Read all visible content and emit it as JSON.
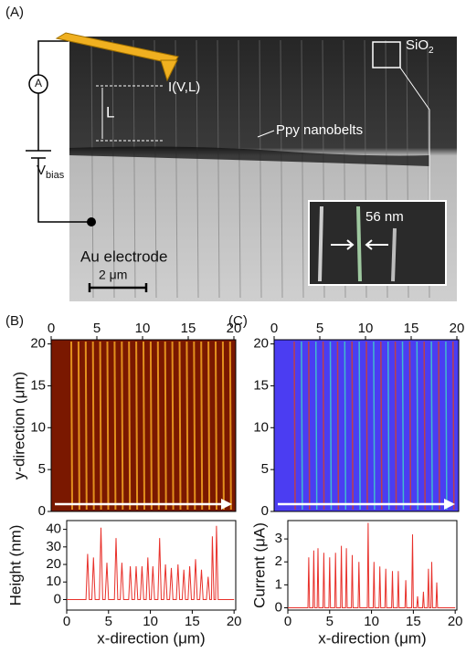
{
  "panel_a": {
    "label": "(A)",
    "ammeter": "A",
    "probe_label": "I(V,L)",
    "length_label": "L",
    "nanobelts_label": "Ppy nanobelts",
    "oxide_label": {
      "text": "SiO",
      "sub": "2"
    },
    "width_label": "56 nm",
    "electrode_label": "Au electrode",
    "scale_label": "2 μm",
    "bias_label": {
      "text": "V",
      "sub": "bias"
    }
  },
  "chart_data": [
    {
      "type": "image",
      "label": "(B)",
      "ylabel": "y-direction (μm)",
      "palette": "heat",
      "xlim": [
        0,
        20.2
      ],
      "xticks": [
        0,
        5,
        10,
        15,
        20
      ],
      "ylim": [
        0,
        20.5
      ],
      "yticks": [
        0,
        5,
        10,
        15,
        20
      ]
    },
    {
      "type": "line",
      "ylabel": "Height (nm)",
      "xlabel": "x-direction (μm)",
      "color": "#e8302a",
      "xlim": [
        0,
        20.2
      ],
      "xticks": [
        0,
        5,
        10,
        15,
        20
      ],
      "ylim": [
        -6,
        45
      ],
      "yticks": [
        0,
        10,
        20,
        30,
        40
      ],
      "x": [
        0,
        2.3,
        2.5,
        2.7,
        3.0,
        3.2,
        3.4,
        3.9,
        4.1,
        4.3,
        4.6,
        4.8,
        5.0,
        5.7,
        5.9,
        6.1,
        6.4,
        6.6,
        6.8,
        7.4,
        7.6,
        7.8,
        8.1,
        8.3,
        8.5,
        8.8,
        9.0,
        9.2,
        9.5,
        9.7,
        9.9,
        10.1,
        10.3,
        10.5,
        10.9,
        11.1,
        11.3,
        11.6,
        11.8,
        12.0,
        12.3,
        12.5,
        12.7,
        13.1,
        13.3,
        13.5,
        13.8,
        14.0,
        14.2,
        14.5,
        14.7,
        14.9,
        15.2,
        15.4,
        15.6,
        15.9,
        16.1,
        16.3,
        16.7,
        16.9,
        17.1,
        17.3,
        17.4,
        17.6,
        17.8,
        17.9,
        18.1,
        20
      ],
      "values": [
        0,
        0,
        26,
        0,
        0,
        24,
        0,
        0,
        41,
        0,
        0,
        21,
        0,
        0,
        35,
        0,
        0,
        21,
        0,
        0,
        19,
        0,
        0,
        19,
        0,
        0,
        19,
        0,
        0,
        24,
        0,
        0,
        19,
        0,
        0,
        35,
        0,
        0,
        20,
        0,
        0,
        18,
        0,
        0,
        20,
        0,
        0,
        17,
        0,
        0,
        19,
        0,
        0,
        23,
        0,
        0,
        17,
        0,
        0,
        13,
        0,
        0,
        36,
        0,
        0,
        42,
        0,
        0
      ]
    },
    {
      "type": "image",
      "label": "(C)",
      "palette": "current",
      "xlim": [
        0,
        20.2
      ],
      "xticks": [
        0,
        5,
        10,
        15,
        20
      ],
      "ylim": [
        0,
        20.5
      ],
      "yticks": [
        0,
        5,
        10,
        15,
        20
      ]
    },
    {
      "type": "line",
      "ylabel": "Current (μA)",
      "xlabel": "x-direction (μm)",
      "color": "#e8302a",
      "xlim": [
        0,
        20.2
      ],
      "xticks": [
        0,
        5,
        10,
        15,
        20
      ],
      "ylim": [
        -0.1,
        3.8
      ],
      "yticks": [
        0,
        1,
        2,
        3
      ],
      "x": [
        0,
        2.4,
        2.5,
        2.6,
        3.0,
        3.1,
        3.2,
        3.5,
        3.6,
        3.7,
        4.2,
        4.3,
        4.4,
        4.9,
        5.0,
        5.1,
        5.6,
        5.7,
        5.8,
        6.3,
        6.4,
        6.5,
        6.9,
        7.0,
        7.1,
        7.6,
        7.7,
        7.8,
        8.4,
        8.5,
        8.6,
        9.5,
        9.6,
        9.7,
        10.2,
        10.3,
        10.4,
        10.9,
        11.0,
        11.1,
        11.6,
        11.7,
        11.8,
        12.4,
        12.5,
        12.6,
        13.1,
        13.2,
        13.3,
        14.0,
        14.1,
        14.2,
        14.8,
        14.9,
        15.0,
        15.4,
        15.5,
        15.6,
        16.1,
        16.2,
        16.3,
        16.7,
        16.8,
        16.9,
        17.1,
        17.2,
        17.3,
        17.7,
        17.8,
        17.9,
        20
      ],
      "values": [
        0,
        0,
        2.2,
        0,
        0,
        2.5,
        0,
        0,
        2.6,
        0,
        0,
        2.4,
        0,
        0,
        2.2,
        0,
        0,
        2.4,
        0,
        0,
        2.7,
        0,
        0,
        2.6,
        0,
        0,
        2.3,
        0,
        0,
        2.0,
        0,
        0,
        3.7,
        0,
        0,
        2.0,
        0,
        0,
        1.8,
        0,
        0,
        1.7,
        0,
        0,
        1.6,
        0,
        0,
        1.6,
        0,
        0,
        1.2,
        0,
        0,
        3.2,
        0,
        0,
        0.5,
        0,
        0,
        0.7,
        0,
        0,
        1.7,
        0,
        0,
        2.0,
        0,
        0,
        1.1,
        0,
        0
      ]
    }
  ]
}
